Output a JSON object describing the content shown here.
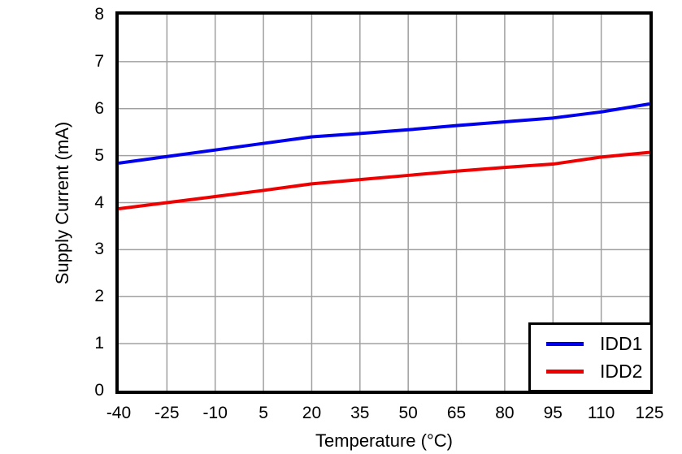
{
  "chart_data": {
    "type": "line",
    "title": "",
    "xlabel": "Temperature (°C)",
    "ylabel": "Supply Current (mA)",
    "xlim": [
      -40,
      125
    ],
    "ylim": [
      0,
      8
    ],
    "x_ticks": [
      -40,
      -25,
      -10,
      5,
      20,
      35,
      50,
      65,
      80,
      95,
      110,
      125
    ],
    "y_ticks": [
      0,
      1,
      2,
      3,
      4,
      5,
      6,
      7,
      8
    ],
    "grid": true,
    "gridline_color": "#A0A0A0",
    "border_color": "#000000",
    "legend_position": "bottom-right",
    "x": [
      -40,
      -25,
      -10,
      5,
      20,
      35,
      50,
      65,
      80,
      95,
      110,
      125
    ],
    "series": [
      {
        "name": "IDD1",
        "color": "#0000EE",
        "values": [
          4.84,
          4.98,
          5.12,
          5.26,
          5.4,
          5.47,
          5.55,
          5.64,
          5.72,
          5.8,
          5.93,
          6.1
        ]
      },
      {
        "name": "IDD2",
        "color": "#EE0000",
        "values": [
          3.87,
          4.0,
          4.13,
          4.26,
          4.4,
          4.49,
          4.58,
          4.67,
          4.75,
          4.82,
          4.97,
          5.07
        ]
      }
    ]
  }
}
